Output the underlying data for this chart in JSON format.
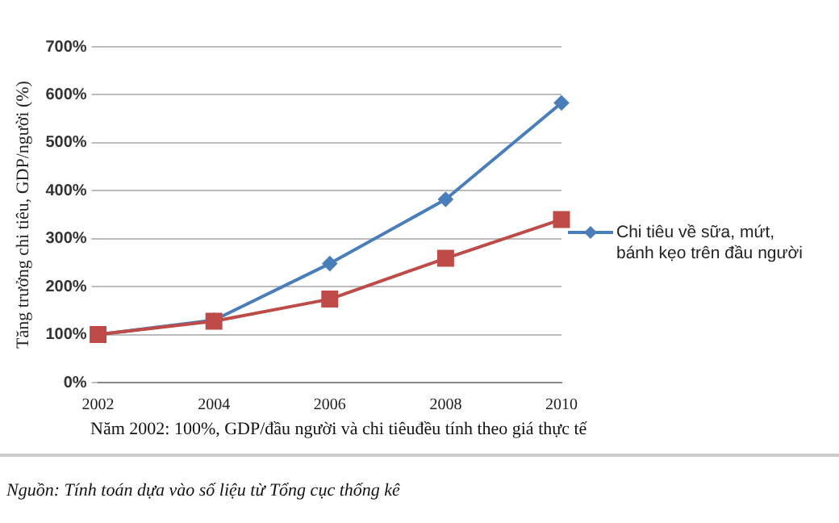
{
  "chart_data": {
    "type": "line",
    "ylabel": "Tăng trưởng chi tiêu, GDP/người (%)",
    "categories": [
      "2002",
      "2004",
      "2006",
      "2008",
      "2010"
    ],
    "series": [
      {
        "name": "Chi tiêu về sữa, mứt, bánh kẹo trên đầu người",
        "color": "#4a7ebb",
        "marker": "diamond",
        "values": [
          100,
          130,
          248,
          382,
          583
        ]
      },
      {
        "color": "#be4b48",
        "marker": "square",
        "values": [
          100,
          128,
          174,
          259,
          340
        ]
      }
    ],
    "ylim": [
      0,
      700
    ],
    "yticks": [
      {
        "value": 0,
        "label": "0%"
      },
      {
        "value": 100,
        "label": "100%"
      },
      {
        "value": 200,
        "label": "200%"
      },
      {
        "value": 300,
        "label": "300%"
      },
      {
        "value": 400,
        "label": "400%"
      },
      {
        "value": 500,
        "label": "500%"
      },
      {
        "value": 600,
        "label": "600%"
      },
      {
        "value": 700,
        "label": "700%"
      }
    ],
    "grid": "y",
    "legend": "right",
    "line_style": "solid",
    "annotations": [
      "Năm 2002: 100%, GDP/đầu người và chi tiêuđều tính theo giá thực tế",
      "Nguồn: Tính toán dựa vào số liệu từ Tổng cục thống kê"
    ]
  }
}
